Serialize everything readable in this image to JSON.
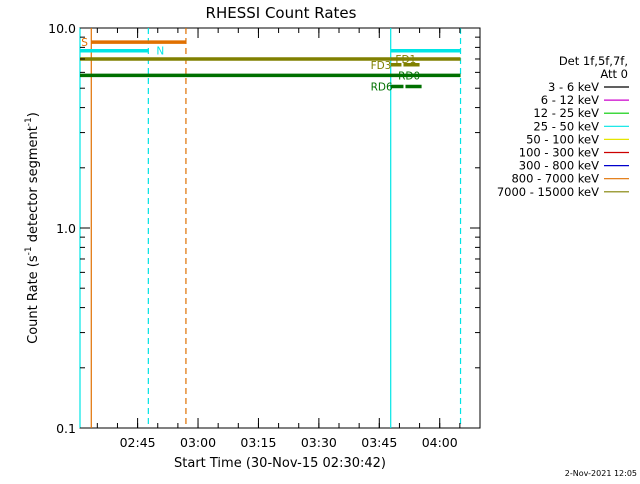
{
  "chart_data": {
    "type": "line",
    "title": "RHESSI Count Rates",
    "xlabel": "Start Time (30-Nov-15 02:30:42)",
    "ylabel_main": "Count Rate (s",
    "ylabel_sup1": "-1",
    "ylabel_mid": " detector segment",
    "ylabel_sup2": "-1",
    "ylabel_end": ")",
    "y_scale": "log",
    "ylim": [
      0.1,
      10.0
    ],
    "xlim": [
      "02:30:42",
      "04:10:00"
    ],
    "x_ticks": [
      {
        "t": "02:45",
        "label": "02:45"
      },
      {
        "t": "03:00",
        "label": "03:00"
      },
      {
        "t": "03:15",
        "label": "03:15"
      },
      {
        "t": "03:30",
        "label": "03:30"
      },
      {
        "t": "03:45",
        "label": "03:45"
      },
      {
        "t": "04:00",
        "label": "04:00"
      }
    ],
    "y_ticks": [
      {
        "v": 0.1,
        "label": "0.1"
      },
      {
        "v": 1.0,
        "label": "1.0"
      },
      {
        "v": 10.0,
        "label": "10.0"
      }
    ],
    "vlines": [
      {
        "t": "02:30:42",
        "color": "#00e5e5",
        "style": "solid"
      },
      {
        "t": "02:33:30",
        "color": "#e07000",
        "style": "solid"
      },
      {
        "t": "02:47:40",
        "color": "#00e5e5",
        "style": "dashed"
      },
      {
        "t": "02:57:00",
        "color": "#e07000",
        "style": "dashed"
      },
      {
        "t": "03:47:50",
        "color": "#00e5e5",
        "style": "solid"
      },
      {
        "t": "04:05:10",
        "color": "#00e5e5",
        "style": "dashed"
      }
    ],
    "bars": [
      {
        "t0": "02:30:42",
        "t1": "02:47:40",
        "v": 7.7,
        "color": "#00e5e5",
        "label": "N",
        "label_at": "02:49:40"
      },
      {
        "t0": "02:33:30",
        "t1": "02:57:00",
        "v": 8.5,
        "color": "#e07000",
        "label": "S",
        "label_at": "02:31:00"
      },
      {
        "t0": "03:47:50",
        "t1": "04:05:10",
        "v": 7.7,
        "color": "#00e5e5",
        "label": "",
        "label_at": ""
      },
      {
        "t0": "02:30:42",
        "t1": "03:47:50",
        "v": 7.0,
        "color": "#808000",
        "label": "",
        "label_at": ""
      },
      {
        "t0": "03:47:50",
        "t1": "04:05:10",
        "v": 7.0,
        "color": "#808000",
        "label": "FD1",
        "label_at": "03:49:00"
      },
      {
        "t0": "03:47:50",
        "t1": "03:50:30",
        "v": 6.55,
        "color": "#808000",
        "label": "FD3",
        "label_at": "03:42:50"
      },
      {
        "t0": "03:51:00",
        "t1": "03:55:00",
        "v": 6.55,
        "color": "#808000",
        "label": "",
        "label_at": ""
      },
      {
        "t0": "02:30:42",
        "t1": "04:05:10",
        "v": 5.8,
        "color": "#007000",
        "label": "RD0",
        "label_at": "03:49:40"
      },
      {
        "t0": "03:47:50",
        "t1": "03:51:00",
        "v": 5.1,
        "color": "#007000",
        "label": "RD6",
        "label_at": "03:42:50"
      },
      {
        "t0": "03:51:30",
        "t1": "03:55:30",
        "v": 5.1,
        "color": "#007000",
        "label": "",
        "label_at": ""
      }
    ],
    "legend_title1": "Det 1f,5f,7f,",
    "legend_title2": "Att 0",
    "legend": [
      {
        "label": "3 - 6 keV",
        "color": "#000000"
      },
      {
        "label": "6 - 12 keV",
        "color": "#cc00cc"
      },
      {
        "label": "12 - 25 keV",
        "color": "#00cc00"
      },
      {
        "label": "25 - 50 keV",
        "color": "#00e5e5"
      },
      {
        "label": "50 - 100 keV",
        "color": "#e5e500"
      },
      {
        "label": "100 - 300 keV",
        "color": "#cc0000"
      },
      {
        "label": "300 - 800 keV",
        "color": "#0000cc"
      },
      {
        "label": "800 - 7000 keV",
        "color": "#e07000"
      },
      {
        "label": "7000 - 15000 keV",
        "color": "#808000"
      }
    ]
  },
  "footer_date": "2-Nov-2021 12:05"
}
